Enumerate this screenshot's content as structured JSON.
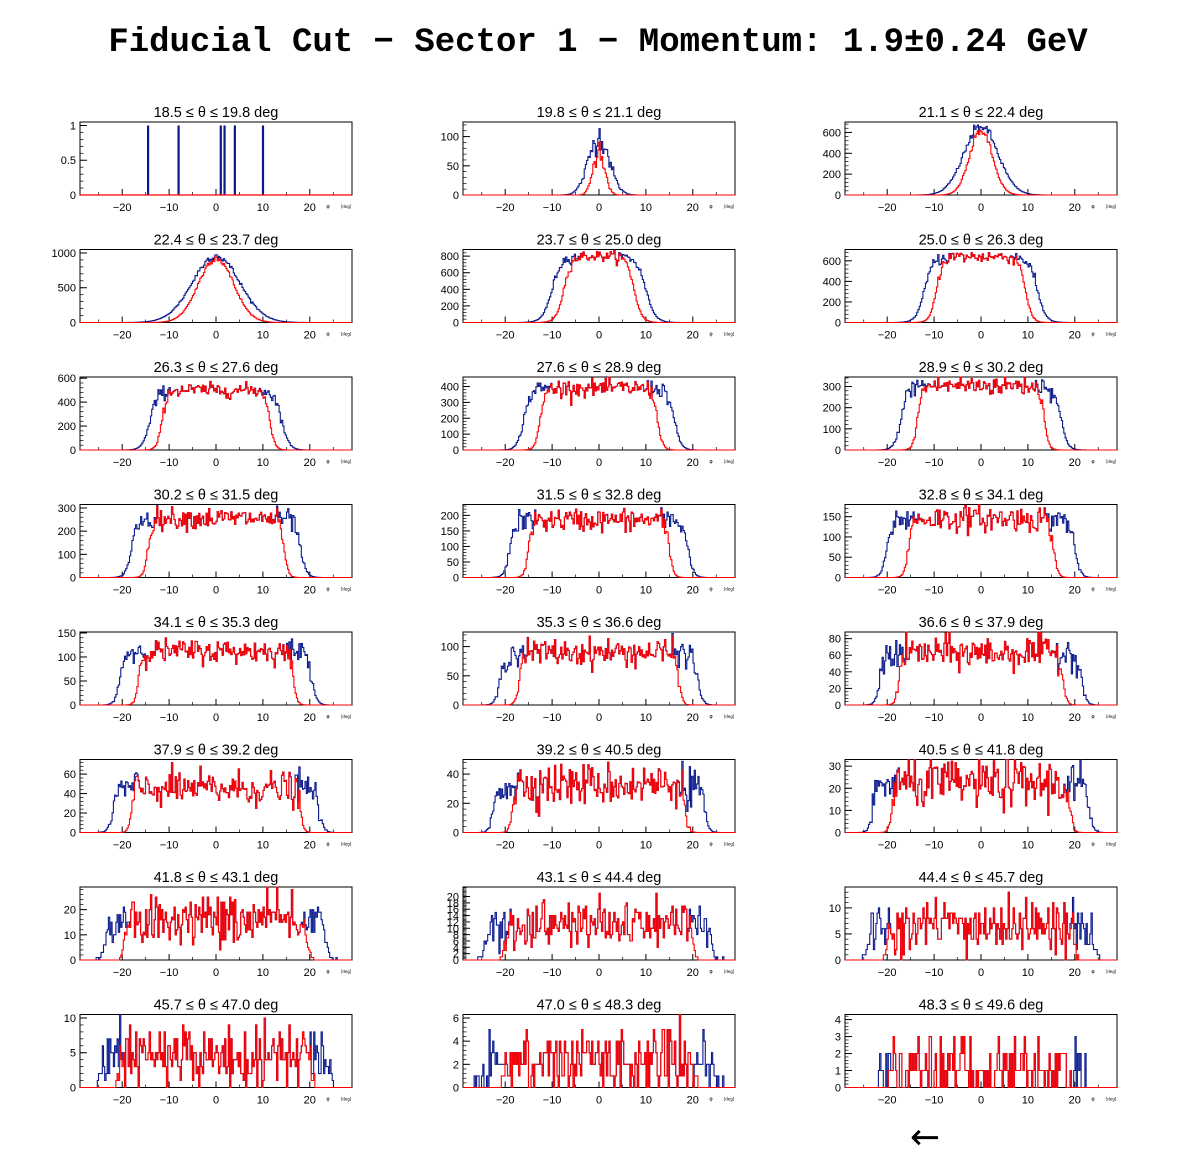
{
  "title": "Fiducial Cut − Sector 1 − Momentum: 1.9±0.24 GeV",
  "nav": {
    "back_arrow": "←"
  },
  "colors": {
    "all_tracks": "#0a1a8c",
    "after_cut": "#ff0000",
    "axis": "#000000"
  },
  "chart_data": [
    {
      "type": "histogram",
      "title_lo": "18.5",
      "title_mid": "≤   θ   ≤",
      "title_hi": "19.8 deg",
      "xlim": [
        -29,
        29
      ],
      "ylim": [
        0,
        1.05
      ],
      "yticks": [
        0,
        0.5,
        1
      ],
      "ytick_labels": [
        "0",
        "0.5",
        "1"
      ],
      "xticks": [
        -20,
        -10,
        0,
        10,
        20
      ],
      "xunit_label": "φ",
      "xunit_text": "[deg]",
      "blue_spikes": [
        -14.5,
        -8,
        1,
        1.8,
        4,
        10
      ],
      "blue_spike_height": 1,
      "shape": null
    },
    {
      "type": "histogram",
      "title_lo": "19.8",
      "title_mid": "≤   θ   ≤",
      "title_hi": "21.1 deg",
      "xlim": [
        -29,
        29
      ],
      "ylim": [
        0,
        125
      ],
      "yticks": [
        0,
        50,
        100
      ],
      "ytick_labels": [
        "0",
        "50",
        "100"
      ],
      "xticks": [
        -20,
        -10,
        0,
        10,
        20
      ],
      "xunit_label": "φ",
      "xunit_text": "[deg]",
      "shape": {
        "kind": "gauss",
        "blue_peak": 100,
        "blue_sigma": 2.2,
        "red_peak": 80,
        "red_sigma": 1.2,
        "noise": 0.12
      }
    },
    {
      "type": "histogram",
      "title_lo": "21.1",
      "title_mid": "≤   θ   ≤",
      "title_hi": "22.4 deg",
      "xlim": [
        -29,
        29
      ],
      "ylim": [
        0,
        700
      ],
      "yticks": [
        0,
        200,
        400,
        600
      ],
      "ytick_labels": [
        "0",
        "200",
        "400",
        "600"
      ],
      "xticks": [
        -20,
        -10,
        0,
        10,
        20
      ],
      "xunit_label": "φ",
      "xunit_text": "[deg]",
      "shape": {
        "kind": "gauss",
        "blue_peak": 660,
        "blue_sigma": 3.6,
        "red_peak": 620,
        "red_sigma": 2.4,
        "noise": 0.04
      }
    },
    {
      "type": "histogram",
      "title_lo": "22.4",
      "title_mid": "≤   θ   ≤",
      "title_hi": "23.7 deg",
      "xlim": [
        -29,
        29
      ],
      "ylim": [
        0,
        1050
      ],
      "yticks": [
        0,
        500,
        1000
      ],
      "ytick_labels": [
        "0",
        "500",
        "1000"
      ],
      "xticks": [
        -20,
        -10,
        0,
        10,
        20
      ],
      "xunit_label": "φ",
      "xunit_text": "[deg]",
      "shape": {
        "kind": "gauss",
        "blue_peak": 960,
        "blue_sigma": 5,
        "red_peak": 930,
        "red_sigma": 3.7,
        "noise": 0.03
      }
    },
    {
      "type": "histogram",
      "title_lo": "23.7",
      "title_mid": "≤   θ   ≤",
      "title_hi": "25.0 deg",
      "xlim": [
        -29,
        29
      ],
      "ylim": [
        0,
        880
      ],
      "yticks": [
        0,
        200,
        400,
        600,
        800
      ],
      "ytick_labels": [
        "0",
        "200",
        "400",
        "600",
        "800"
      ],
      "xticks": [
        -20,
        -10,
        0,
        10,
        20
      ],
      "xunit_label": "φ",
      "xunit_text": "[deg]",
      "shape": {
        "kind": "plateau",
        "height": 800,
        "blue_half": 10,
        "blue_w": 2.2,
        "red_half": 7.5,
        "red_w": 1.8,
        "noise": 0.04
      }
    },
    {
      "type": "histogram",
      "title_lo": "25.0",
      "title_mid": "≤   θ   ≤",
      "title_hi": "26.3 deg",
      "xlim": [
        -29,
        29
      ],
      "ylim": [
        0,
        710
      ],
      "yticks": [
        0,
        200,
        400,
        600
      ],
      "ytick_labels": [
        "0",
        "200",
        "400",
        "600"
      ],
      "xticks": [
        -20,
        -10,
        0,
        10,
        20
      ],
      "xunit_label": "φ",
      "xunit_text": "[deg]",
      "shape": {
        "kind": "plateau",
        "height": 640,
        "blue_half": 12,
        "blue_w": 2,
        "red_half": 9.5,
        "red_w": 1.5,
        "noise": 0.05
      }
    },
    {
      "type": "histogram",
      "title_lo": "26.3",
      "title_mid": "≤   θ   ≤",
      "title_hi": "27.6 deg",
      "xlim": [
        -29,
        29
      ],
      "ylim": [
        0,
        610
      ],
      "yticks": [
        0,
        200,
        400,
        600
      ],
      "ytick_labels": [
        "0",
        "200",
        "400",
        "600"
      ],
      "xticks": [
        -20,
        -10,
        0,
        10,
        20
      ],
      "xunit_label": "φ",
      "xunit_text": "[deg]",
      "shape": {
        "kind": "plateau",
        "height": 500,
        "blue_half": 14,
        "blue_w": 1.8,
        "red_half": 11.5,
        "red_w": 1.2,
        "noise": 0.06
      }
    },
    {
      "type": "histogram",
      "title_lo": "27.6",
      "title_mid": "≤   θ   ≤",
      "title_hi": "28.9 deg",
      "xlim": [
        -29,
        29
      ],
      "ylim": [
        0,
        460
      ],
      "yticks": [
        0,
        100,
        200,
        300,
        400
      ],
      "ytick_labels": [
        "0",
        "100",
        "200",
        "300",
        "400"
      ],
      "xticks": [
        -20,
        -10,
        0,
        10,
        20
      ],
      "xunit_label": "φ",
      "xunit_text": "[deg]",
      "shape": {
        "kind": "plateau",
        "height": 390,
        "blue_half": 16,
        "blue_w": 1.6,
        "red_half": 12.5,
        "red_w": 1.2,
        "noise": 0.07
      }
    },
    {
      "type": "histogram",
      "title_lo": "28.9",
      "title_mid": "≤   θ   ≤",
      "title_hi": "30.2 deg",
      "xlim": [
        -29,
        29
      ],
      "ylim": [
        0,
        345
      ],
      "yticks": [
        0,
        100,
        200,
        300
      ],
      "ytick_labels": [
        "0",
        "100",
        "200",
        "300"
      ],
      "xticks": [
        -20,
        -10,
        0,
        10,
        20
      ],
      "xunit_label": "φ",
      "xunit_text": "[deg]",
      "shape": {
        "kind": "plateau",
        "height": 305,
        "blue_half": 17,
        "blue_w": 1.6,
        "red_half": 13.5,
        "red_w": 1.1,
        "noise": 0.08
      }
    },
    {
      "type": "histogram",
      "title_lo": "30.2",
      "title_mid": "≤   θ   ≤",
      "title_hi": "31.5 deg",
      "xlim": [
        -29,
        29
      ],
      "ylim": [
        0,
        315
      ],
      "yticks": [
        0,
        100,
        200,
        300
      ],
      "ytick_labels": [
        "0",
        "100",
        "200",
        "300"
      ],
      "xticks": [
        -20,
        -10,
        0,
        10,
        20
      ],
      "xunit_label": "φ",
      "xunit_text": "[deg]",
      "shape": {
        "kind": "plateau",
        "height": 255,
        "blue_half": 18,
        "blue_w": 1.4,
        "red_half": 14.5,
        "red_w": 1,
        "noise": 0.09
      }
    },
    {
      "type": "histogram",
      "title_lo": "31.5",
      "title_mid": "≤   θ   ≤",
      "title_hi": "32.8 deg",
      "xlim": [
        -29,
        29
      ],
      "ylim": [
        0,
        235
      ],
      "yticks": [
        0,
        50,
        100,
        150,
        200
      ],
      "ytick_labels": [
        "0",
        "50",
        "100",
        "150",
        "200"
      ],
      "xticks": [
        -20,
        -10,
        0,
        10,
        20
      ],
      "xunit_label": "φ",
      "xunit_text": "[deg]",
      "shape": {
        "kind": "plateau",
        "height": 185,
        "blue_half": 19,
        "blue_w": 1.3,
        "red_half": 15,
        "red_w": 1,
        "noise": 0.1
      }
    },
    {
      "type": "histogram",
      "title_lo": "32.8",
      "title_mid": "≤   θ   ≤",
      "title_hi": "34.1 deg",
      "xlim": [
        -29,
        29
      ],
      "ylim": [
        0,
        180
      ],
      "yticks": [
        0,
        50,
        100,
        150
      ],
      "ytick_labels": [
        "0",
        "50",
        "100",
        "150"
      ],
      "xticks": [
        -20,
        -10,
        0,
        10,
        20
      ],
      "xunit_label": "φ",
      "xunit_text": "[deg]",
      "shape": {
        "kind": "plateau",
        "height": 145,
        "blue_half": 20,
        "blue_w": 1.3,
        "red_half": 15.5,
        "red_w": 1,
        "noise": 0.11
      }
    },
    {
      "type": "histogram",
      "title_lo": "34.1",
      "title_mid": "≤   θ   ≤",
      "title_hi": "35.3 deg",
      "xlim": [
        -29,
        29
      ],
      "ylim": [
        0,
        152
      ],
      "yticks": [
        0,
        50,
        100,
        150
      ],
      "ytick_labels": [
        "0",
        "50",
        "100",
        "150"
      ],
      "xticks": [
        -20,
        -10,
        0,
        10,
        20
      ],
      "xunit_label": "φ",
      "xunit_text": "[deg]",
      "shape": {
        "kind": "plateau",
        "height": 112,
        "blue_half": 20.5,
        "blue_w": 1.2,
        "red_half": 16.5,
        "red_w": 0.9,
        "noise": 0.11
      }
    },
    {
      "type": "histogram",
      "title_lo": "35.3",
      "title_mid": "≤   θ   ≤",
      "title_hi": "36.6 deg",
      "xlim": [
        -29,
        29
      ],
      "ylim": [
        0,
        125
      ],
      "yticks": [
        0,
        50,
        100
      ],
      "ytick_labels": [
        "0",
        "50",
        "100"
      ],
      "xticks": [
        -20,
        -10,
        0,
        10,
        20
      ],
      "xunit_label": "φ",
      "xunit_text": "[deg]",
      "shape": {
        "kind": "plateau",
        "height": 90,
        "blue_half": 21,
        "blue_w": 1.2,
        "red_half": 17,
        "red_w": 0.9,
        "noise": 0.13
      }
    },
    {
      "type": "histogram",
      "title_lo": "36.6",
      "title_mid": "≤   θ   ≤",
      "title_hi": "37.9 deg",
      "xlim": [
        -29,
        29
      ],
      "ylim": [
        0,
        88
      ],
      "yticks": [
        0,
        20,
        40,
        60,
        80
      ],
      "ytick_labels": [
        "0",
        "20",
        "40",
        "60",
        "80"
      ],
      "xticks": [
        -20,
        -10,
        0,
        10,
        20
      ],
      "xunit_label": "φ",
      "xunit_text": "[deg]",
      "shape": {
        "kind": "plateau",
        "height": 63,
        "blue_half": 21.5,
        "blue_w": 1.1,
        "red_half": 17.5,
        "red_w": 0.9,
        "noise": 0.16
      }
    },
    {
      "type": "histogram",
      "title_lo": "37.9",
      "title_mid": "≤   θ   ≤",
      "title_hi": "39.2 deg",
      "xlim": [
        -29,
        29
      ],
      "ylim": [
        0,
        75
      ],
      "yticks": [
        0,
        20,
        40,
        60
      ],
      "ytick_labels": [
        "0",
        "20",
        "40",
        "60"
      ],
      "xticks": [
        -20,
        -10,
        0,
        10,
        20
      ],
      "xunit_label": "φ",
      "xunit_text": "[deg]",
      "shape": {
        "kind": "plateau",
        "height": 45,
        "blue_half": 22,
        "blue_w": 1.1,
        "red_half": 18,
        "red_w": 0.8,
        "noise": 0.2
      }
    },
    {
      "type": "histogram",
      "title_lo": "39.2",
      "title_mid": "≤   θ   ≤",
      "title_hi": "40.5 deg",
      "xlim": [
        -29,
        29
      ],
      "ylim": [
        0,
        50
      ],
      "yticks": [
        0,
        20,
        40
      ],
      "ytick_labels": [
        "0",
        "20",
        "40"
      ],
      "xticks": [
        -20,
        -10,
        0,
        10,
        20
      ],
      "xunit_label": "φ",
      "xunit_text": "[deg]",
      "shape": {
        "kind": "plateau",
        "height": 33,
        "blue_half": 22.5,
        "blue_w": 1,
        "red_half": 18.5,
        "red_w": 0.8,
        "noise": 0.22
      }
    },
    {
      "type": "histogram",
      "title_lo": "40.5",
      "title_mid": "≤   θ   ≤",
      "title_hi": "41.8 deg",
      "xlim": [
        -29,
        29
      ],
      "ylim": [
        0,
        33
      ],
      "yticks": [
        0,
        10,
        20,
        30
      ],
      "ytick_labels": [
        "0",
        "10",
        "20",
        "30"
      ],
      "xticks": [
        -20,
        -10,
        0,
        10,
        20
      ],
      "xunit_label": "φ",
      "xunit_text": "[deg]",
      "shape": {
        "kind": "plateau",
        "height": 22,
        "blue_half": 23,
        "blue_w": 1,
        "red_half": 19,
        "red_w": 0.8,
        "noise": 0.25
      }
    },
    {
      "type": "histogram",
      "title_lo": "41.8",
      "title_mid": "≤   θ   ≤",
      "title_hi": "43.1 deg",
      "xlim": [
        -29,
        29
      ],
      "ylim": [
        0,
        29
      ],
      "yticks": [
        0,
        10,
        20
      ],
      "ytick_labels": [
        "0",
        "10",
        "20"
      ],
      "xticks": [
        -20,
        -10,
        0,
        10,
        20
      ],
      "xunit_label": "φ",
      "xunit_text": "[deg]",
      "shape": {
        "kind": "plateau",
        "height": 16,
        "blue_half": 23.5,
        "blue_w": 1,
        "red_half": 19.5,
        "red_w": 0.8,
        "noise": 0.3
      }
    },
    {
      "type": "histogram",
      "title_lo": "43.1",
      "title_mid": "≤   θ   ≤",
      "title_hi": "44.4 deg",
      "xlim": [
        -29,
        29
      ],
      "ylim": [
        0,
        23
      ],
      "yticks": [
        0,
        2,
        4,
        6,
        8,
        10,
        12,
        14,
        16,
        18,
        20
      ],
      "ytick_labels": [
        "0",
        "2",
        "4",
        "6",
        "8",
        "10",
        "12",
        "14",
        "16",
        "18",
        "20"
      ],
      "xticks": [
        -20,
        -10,
        0,
        10,
        20
      ],
      "xunit_label": "φ",
      "xunit_text": "[deg]",
      "shape": {
        "kind": "plateau",
        "height": 11,
        "blue_half": 24,
        "blue_w": 1,
        "red_half": 20,
        "red_w": 0.8,
        "noise": 0.35
      }
    },
    {
      "type": "histogram",
      "title_lo": "44.4",
      "title_mid": "≤   θ   ≤",
      "title_hi": "45.7 deg",
      "xlim": [
        -29,
        29
      ],
      "ylim": [
        0,
        14
      ],
      "yticks": [
        0,
        5,
        10
      ],
      "ytick_labels": [
        "0",
        "5",
        "10"
      ],
      "xticks": [
        -20,
        -10,
        0,
        10,
        20
      ],
      "xunit_label": "φ",
      "xunit_text": "[deg]",
      "shape": {
        "kind": "plateau",
        "height": 6.5,
        "blue_half": 24,
        "blue_w": 1,
        "red_half": 20,
        "red_w": 0.8,
        "noise": 0.4
      }
    },
    {
      "type": "histogram",
      "title_lo": "45.7",
      "title_mid": "≤   θ   ≤",
      "title_hi": "47.0 deg",
      "xlim": [
        -29,
        29
      ],
      "ylim": [
        0,
        10.5
      ],
      "yticks": [
        0,
        5,
        10
      ],
      "ytick_labels": [
        "0",
        "5",
        "10"
      ],
      "xticks": [
        -20,
        -10,
        0,
        10,
        20
      ],
      "xunit_label": "φ",
      "xunit_text": "[deg]",
      "shape": {
        "kind": "plateau",
        "height": 4.5,
        "blue_half": 24.5,
        "blue_w": 1,
        "red_half": 20.5,
        "red_w": 0.8,
        "noise": 0.5
      }
    },
    {
      "type": "histogram",
      "title_lo": "47.0",
      "title_mid": "≤   θ   ≤",
      "title_hi": "48.3 deg",
      "xlim": [
        -29,
        29
      ],
      "ylim": [
        0,
        6.3
      ],
      "yticks": [
        0,
        2,
        4,
        6
      ],
      "ytick_labels": [
        "0",
        "2",
        "4",
        "6"
      ],
      "xticks": [
        -20,
        -10,
        0,
        10,
        20
      ],
      "xunit_label": "φ",
      "xunit_text": "[deg]",
      "shape": {
        "kind": "plateau",
        "height": 2.3,
        "blue_half": 25,
        "blue_w": 1,
        "red_half": 20.5,
        "red_w": 0.8,
        "noise": 0.6
      }
    },
    {
      "type": "histogram",
      "title_lo": "48.3",
      "title_mid": "≤   θ   ≤",
      "title_hi": "49.6 deg",
      "xlim": [
        -29,
        29
      ],
      "ylim": [
        0,
        4.3
      ],
      "yticks": [
        0,
        1,
        2,
        3,
        4
      ],
      "ytick_labels": [
        "0",
        "1",
        "2",
        "3",
        "4"
      ],
      "xticks": [
        -20,
        -10,
        0,
        10,
        20
      ],
      "xunit_label": "φ",
      "xunit_text": "[deg]",
      "shape": {
        "kind": "plateau",
        "height": 1.1,
        "blue_half": 22,
        "blue_w": 1,
        "red_half": 19.5,
        "red_w": 0.8,
        "noise": 0.8
      }
    }
  ]
}
